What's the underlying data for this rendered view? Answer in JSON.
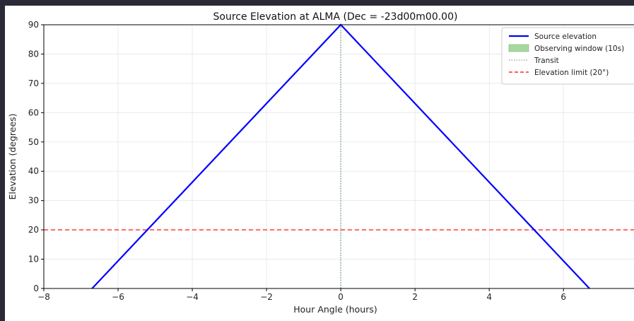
{
  "chart_data": {
    "type": "line",
    "title": "Source Elevation at ALMA (Dec = -23d00m00.00)",
    "xlabel": "Hour Angle (hours)",
    "ylabel": "Elevation (degrees)",
    "xlim": [
      -8,
      7.9
    ],
    "ylim": [
      0,
      90
    ],
    "xticks": [
      -8,
      -6,
      -4,
      -2,
      0,
      2,
      4,
      6
    ],
    "xtick_labels": [
      "−8",
      "−6",
      "−4",
      "−2",
      "0",
      "2",
      "4",
      "6"
    ],
    "yticks": [
      0,
      10,
      20,
      30,
      40,
      50,
      60,
      70,
      80,
      90
    ],
    "ytick_labels": [
      "0",
      "10",
      "20",
      "30",
      "40",
      "50",
      "60",
      "70",
      "80",
      "90"
    ],
    "grid": true,
    "legend_position": "top-right",
    "series": [
      {
        "name": "Source elevation",
        "kind": "line",
        "color": "#0000ff",
        "style": "solid",
        "x": [
          -6.7,
          0,
          6.7
        ],
        "y": [
          0,
          90,
          0
        ]
      },
      {
        "name": "Observing window (10s)",
        "kind": "fill",
        "color": "#a6d8a0"
      },
      {
        "name": "Transit",
        "kind": "vline",
        "color": "#5f8f7a",
        "style": "dotted",
        "x": 0
      },
      {
        "name": "Elevation limit (20°)",
        "kind": "hline",
        "color": "#ff2a2a",
        "style": "dashed",
        "y": 20
      }
    ]
  }
}
